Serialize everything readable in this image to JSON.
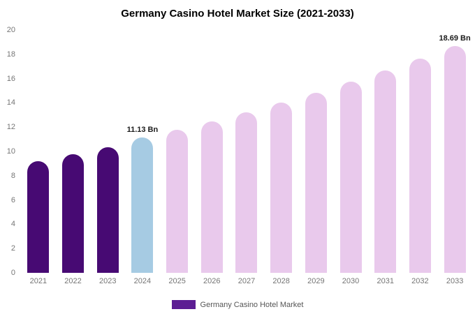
{
  "chart_data": {
    "type": "bar",
    "title": "Germany Casino Hotel Market Size (2021-2033)",
    "xlabel": "",
    "ylabel": "",
    "unit": "Bn",
    "categories": [
      "2021",
      "2022",
      "2023",
      "2024",
      "2025",
      "2026",
      "2027",
      "2028",
      "2029",
      "2030",
      "2031",
      "2032",
      "2033"
    ],
    "values": [
      9.2,
      9.75,
      10.35,
      11.13,
      11.79,
      12.49,
      13.23,
      14.01,
      14.84,
      15.72,
      16.65,
      17.64,
      18.69
    ],
    "bar_labels": [
      "",
      "",
      "",
      "11.13 Bn",
      "",
      "",
      "",
      "",
      "",
      "",
      "",
      "",
      "18.69 Bn"
    ],
    "bar_colors": [
      "#470a73",
      "#470a73",
      "#470a73",
      "#a6cbe3",
      "#e9c9ec",
      "#e9c9ec",
      "#e9c9ec",
      "#e9c9ec",
      "#e9c9ec",
      "#e9c9ec",
      "#e9c9ec",
      "#e9c9ec",
      "#e9c9ec"
    ],
    "ylim": [
      0,
      20
    ],
    "yticks": [
      0,
      2,
      4,
      6,
      8,
      10,
      12,
      14,
      16,
      18,
      20
    ],
    "grid": false,
    "legend": {
      "label": "Germany Casino Hotel Market",
      "color": "#5c1d93",
      "position": "bottom"
    }
  }
}
